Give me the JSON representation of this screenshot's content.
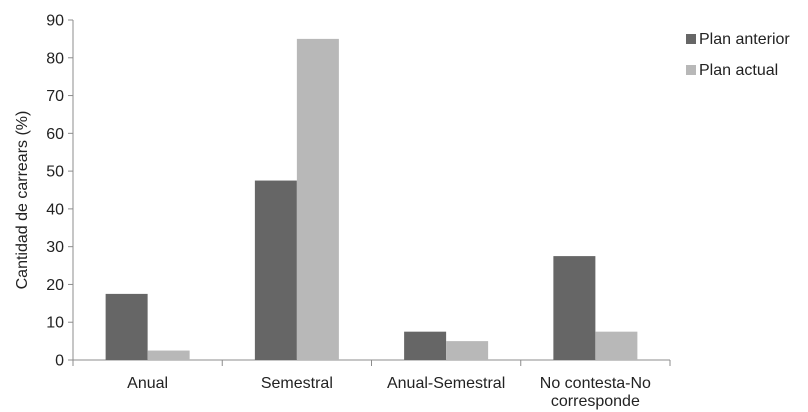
{
  "chart_data": {
    "type": "bar",
    "title": "",
    "xlabel": "",
    "ylabel": "Cantidad de carrears (%)",
    "ylim": [
      0,
      90
    ],
    "yticks": [
      0,
      10,
      20,
      30,
      40,
      50,
      60,
      70,
      80,
      90
    ],
    "grid": false,
    "legend_position": "right",
    "categories": [
      [
        "Anual"
      ],
      [
        "Semestral"
      ],
      [
        "Anual-Semestral"
      ],
      [
        "No contesta-No",
        "corresponde"
      ]
    ],
    "series": [
      {
        "name": "Plan anterior",
        "color": "#666666",
        "values": [
          17.5,
          47.5,
          7.5,
          27.5
        ]
      },
      {
        "name": "Plan actual",
        "color": "#b8b8b8",
        "values": [
          2.5,
          85,
          5,
          7.5
        ]
      }
    ]
  }
}
